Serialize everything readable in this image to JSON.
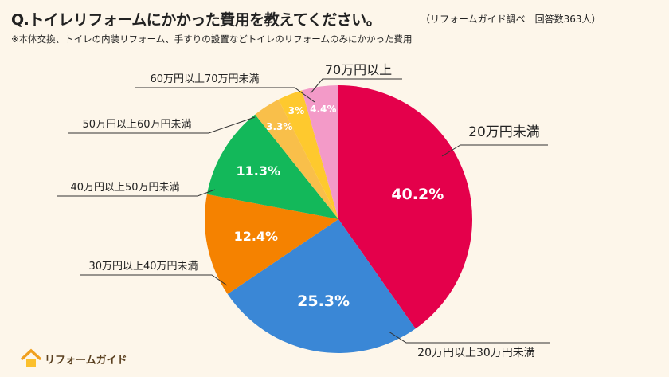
{
  "header": {
    "title": "Q.トイレリフォームにかかった費用を教えてください。",
    "source": "（リフォームガイド調べ　回答数363人）",
    "note": "※本体交換、トイレの内装リフォーム、手すりの設置などトイレのリフォームのみにかかった費用"
  },
  "logo": {
    "text": "リフォームガイド",
    "icon": "house-icon",
    "color": "#f0a020"
  },
  "chart_data": {
    "type": "pie",
    "start": "top",
    "direction": "clockwise",
    "categories": [
      "20万円未満",
      "20万円以上30万円未満",
      "30万円以上40万円未満",
      "40万円以上50万円未満",
      "50万円以上60万円未満",
      "60万円以上70万円未満",
      "70万円以上"
    ],
    "values": [
      40.2,
      25.3,
      12.4,
      11.3,
      3.3,
      3,
      4.4
    ],
    "data_labels": [
      "40.2%",
      "25.3%",
      "12.4%",
      "11.3%",
      "3.3%",
      "3%",
      "4.4%"
    ],
    "colors": [
      "#e4004b",
      "#3a87d6",
      "#f58200",
      "#13b85a",
      "#f9bf4a",
      "#fec92e",
      "#f39ac8"
    ]
  }
}
